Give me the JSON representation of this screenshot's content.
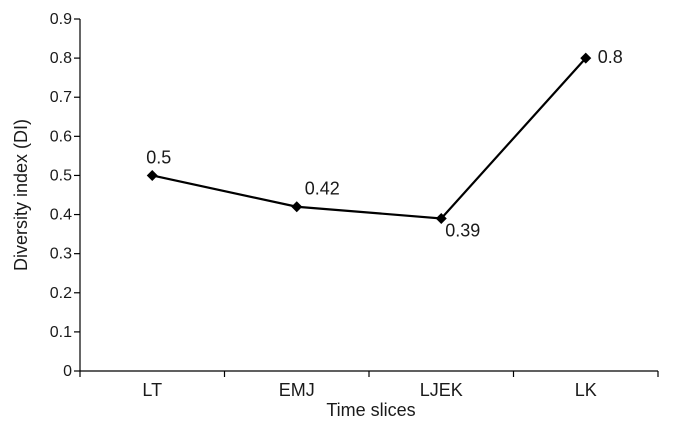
{
  "chart_data": {
    "type": "line",
    "title": "",
    "xlabel": "Time slices",
    "ylabel": "Diversity index (DI)",
    "categories": [
      "LT",
      "EMJ",
      "LJEK",
      "LK"
    ],
    "ylim": [
      0,
      0.9
    ],
    "yticks": [
      "0",
      "0.1",
      "0.2",
      "0.3",
      "0.4",
      "0.5",
      "0.6",
      "0.7",
      "0.8",
      "0.9"
    ],
    "grid": false,
    "legend": "none",
    "series": [
      {
        "values": [
          0.5,
          0.42,
          0.39,
          0.8
        ],
        "labels": [
          "0.5",
          "0.42",
          "0.39",
          "0.8"
        ],
        "marker": "diamond",
        "color": "#000000"
      }
    ]
  }
}
